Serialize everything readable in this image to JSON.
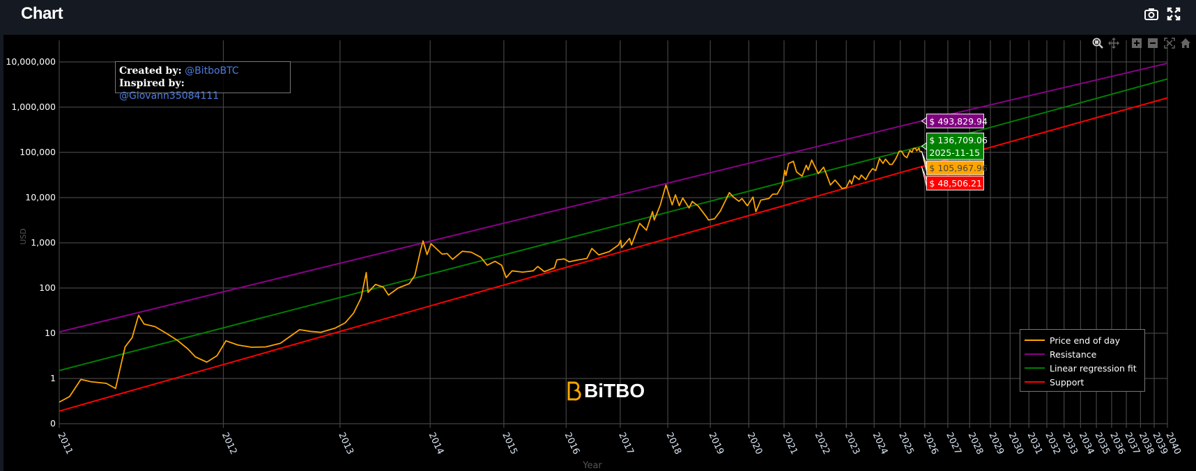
{
  "header": {
    "title": "Chart",
    "icons": [
      "camera-icon",
      "fullscreen-icon"
    ]
  },
  "modebar": {
    "icons": [
      "zoom-icon",
      "pan-icon",
      "zoom-in-icon",
      "zoom-out-icon",
      "autoscale-icon",
      "reset-axes-icon"
    ]
  },
  "annotation": {
    "created_label": "Created by:",
    "created_handle": "@BitboBTC",
    "inspired_label": "Inspired by:",
    "inspired_handle": "@Giovann35084111"
  },
  "watermark": {
    "text": "BiTBO"
  },
  "chart_data": {
    "type": "line",
    "xlabel": "Year",
    "ylabel": "USD",
    "xscale": "log",
    "yscale": "log",
    "grid": true,
    "legend_position": "bottom-right",
    "x_ticks": [
      "2011",
      "2012",
      "2013",
      "2014",
      "2015",
      "2016",
      "2017",
      "2018",
      "2019",
      "2020",
      "2021",
      "2022",
      "2023",
      "2024",
      "2025",
      "2026",
      "2027",
      "2028",
      "2029",
      "2030",
      "2031",
      "2032",
      "2033",
      "2034",
      "2035",
      "2036",
      "2037",
      "2038",
      "2039",
      "2040"
    ],
    "y_ticks": [
      {
        "value": 0.1,
        "label": "0"
      },
      {
        "value": 1,
        "label": "1"
      },
      {
        "value": 10,
        "label": "10"
      },
      {
        "value": 100,
        "label": "100"
      },
      {
        "value": 1000,
        "label": "1,000"
      },
      {
        "value": 10000,
        "label": "10,000"
      },
      {
        "value": 100000,
        "label": "100,000"
      },
      {
        "value": 1000000,
        "label": "1,000,000"
      },
      {
        "value": 10000000,
        "label": "10,000,000"
      }
    ],
    "series": [
      {
        "name": "Price end of day",
        "color": "#ffa500",
        "points": [
          [
            "2011-01-01",
            0.3
          ],
          [
            "2011-01-20",
            0.4
          ],
          [
            "2011-02-10",
            0.95
          ],
          [
            "2011-03-01",
            0.85
          ],
          [
            "2011-04-01",
            0.78
          ],
          [
            "2011-04-20",
            0.6
          ],
          [
            "2011-05-10",
            5
          ],
          [
            "2011-05-25",
            8
          ],
          [
            "2011-06-08",
            25
          ],
          [
            "2011-06-20",
            16
          ],
          [
            "2011-07-15",
            14
          ],
          [
            "2011-08-10",
            10
          ],
          [
            "2011-09-05",
            7
          ],
          [
            "2011-10-01",
            4.5
          ],
          [
            "2011-10-20",
            3
          ],
          [
            "2011-11-18",
            2.3
          ],
          [
            "2011-12-15",
            3.2
          ],
          [
            "2012-01-08",
            6.8
          ],
          [
            "2012-02-10",
            5.5
          ],
          [
            "2012-03-20",
            4.9
          ],
          [
            "2012-05-01",
            5
          ],
          [
            "2012-06-15",
            6
          ],
          [
            "2012-08-15",
            12
          ],
          [
            "2012-09-20",
            11
          ],
          [
            "2012-10-25",
            10.5
          ],
          [
            "2012-12-15",
            13
          ],
          [
            "2013-01-20",
            17
          ],
          [
            "2013-02-20",
            28
          ],
          [
            "2013-03-20",
            60
          ],
          [
            "2013-04-09",
            220
          ],
          [
            "2013-04-16",
            80
          ],
          [
            "2013-05-15",
            120
          ],
          [
            "2013-06-15",
            105
          ],
          [
            "2013-07-06",
            70
          ],
          [
            "2013-08-15",
            100
          ],
          [
            "2013-10-01",
            125
          ],
          [
            "2013-10-25",
            190
          ],
          [
            "2013-11-18",
            650
          ],
          [
            "2013-11-30",
            1100
          ],
          [
            "2013-12-18",
            550
          ],
          [
            "2014-01-05",
            950
          ],
          [
            "2014-02-25",
            560
          ],
          [
            "2014-03-20",
            580
          ],
          [
            "2014-04-15",
            430
          ],
          [
            "2014-06-01",
            650
          ],
          [
            "2014-07-15",
            620
          ],
          [
            "2014-09-01",
            480
          ],
          [
            "2014-10-05",
            320
          ],
          [
            "2014-11-15",
            390
          ],
          [
            "2014-12-20",
            320
          ],
          [
            "2015-01-14",
            170
          ],
          [
            "2015-02-15",
            240
          ],
          [
            "2015-04-15",
            225
          ],
          [
            "2015-06-15",
            240
          ],
          [
            "2015-07-12",
            300
          ],
          [
            "2015-08-20",
            230
          ],
          [
            "2015-10-20",
            280
          ],
          [
            "2015-11-04",
            420
          ],
          [
            "2015-12-20",
            440
          ],
          [
            "2016-01-20",
            380
          ],
          [
            "2016-03-15",
            415
          ],
          [
            "2016-05-15",
            450
          ],
          [
            "2016-06-17",
            750
          ],
          [
            "2016-08-03",
            540
          ],
          [
            "2016-10-15",
            640
          ],
          [
            "2016-12-20",
            900
          ],
          [
            "2017-01-04",
            1130
          ],
          [
            "2017-01-12",
            780
          ],
          [
            "2017-03-10",
            1250
          ],
          [
            "2017-03-25",
            900
          ],
          [
            "2017-05-25",
            2700
          ],
          [
            "2017-07-16",
            1900
          ],
          [
            "2017-09-01",
            4900
          ],
          [
            "2017-09-15",
            3200
          ],
          [
            "2017-11-01",
            6800
          ],
          [
            "2017-12-17",
            19000
          ],
          [
            "2018-02-06",
            6900
          ],
          [
            "2018-03-05",
            11500
          ],
          [
            "2018-04-06",
            6600
          ],
          [
            "2018-05-05",
            9800
          ],
          [
            "2018-06-28",
            5900
          ],
          [
            "2018-07-25",
            8200
          ],
          [
            "2018-09-15",
            6500
          ],
          [
            "2018-11-25",
            3800
          ],
          [
            "2018-12-15",
            3200
          ],
          [
            "2019-02-08",
            3400
          ],
          [
            "2019-04-02",
            5000
          ],
          [
            "2019-06-26",
            12900
          ],
          [
            "2019-08-01",
            10400
          ],
          [
            "2019-09-25",
            8300
          ],
          [
            "2019-10-26",
            9500
          ],
          [
            "2019-12-17",
            6600
          ],
          [
            "2020-02-12",
            10300
          ],
          [
            "2020-03-12",
            4900
          ],
          [
            "2020-05-01",
            8800
          ],
          [
            "2020-07-25",
            9600
          ],
          [
            "2020-09-01",
            11900
          ],
          [
            "2020-10-20",
            12000
          ],
          [
            "2020-12-15",
            19400
          ],
          [
            "2021-01-08",
            40000
          ],
          [
            "2021-01-22",
            31000
          ],
          [
            "2021-02-20",
            57000
          ],
          [
            "2021-04-13",
            63500
          ],
          [
            "2021-05-19",
            37000
          ],
          [
            "2021-07-20",
            29800
          ],
          [
            "2021-09-06",
            52000
          ],
          [
            "2021-09-28",
            41000
          ],
          [
            "2021-11-08",
            67500
          ],
          [
            "2021-12-15",
            48000
          ],
          [
            "2022-01-24",
            34000
          ],
          [
            "2022-03-28",
            47000
          ],
          [
            "2022-05-12",
            29000
          ],
          [
            "2022-06-18",
            19000
          ],
          [
            "2022-08-14",
            24400
          ],
          [
            "2022-09-30",
            19400
          ],
          [
            "2022-11-09",
            15900
          ],
          [
            "2022-12-30",
            16500
          ],
          [
            "2023-02-15",
            24300
          ],
          [
            "2023-03-10",
            20000
          ],
          [
            "2023-04-14",
            30500
          ],
          [
            "2023-06-15",
            25000
          ],
          [
            "2023-07-13",
            31400
          ],
          [
            "2023-09-11",
            25000
          ],
          [
            "2023-10-25",
            34500
          ],
          [
            "2023-12-10",
            43700
          ],
          [
            "2024-01-23",
            39500
          ],
          [
            "2024-03-14",
            73000
          ],
          [
            "2024-05-01",
            57000
          ],
          [
            "2024-06-05",
            71000
          ],
          [
            "2024-08-05",
            54000
          ],
          [
            "2024-09-06",
            53900
          ],
          [
            "2024-10-29",
            72500
          ],
          [
            "2024-12-17",
            106000
          ],
          [
            "2025-01-21",
            106000
          ],
          [
            "2025-02-28",
            84000
          ],
          [
            "2025-04-08",
            76000
          ],
          [
            "2025-05-22",
            111000
          ],
          [
            "2025-06-22",
            100000
          ],
          [
            "2025-07-14",
            122000
          ],
          [
            "2025-08-14",
            123000
          ],
          [
            "2025-09-01",
            108000
          ],
          [
            "2025-10-06",
            124500
          ],
          [
            "2025-10-17",
            106000
          ],
          [
            "2025-11-04",
            103000
          ],
          [
            "2025-11-15",
            105967.96
          ]
        ]
      },
      {
        "name": "Resistance",
        "color": "#8b008b",
        "points": [
          [
            "2011-01-01",
            10.7
          ],
          [
            "2025-11-15",
            493829.94
          ],
          [
            "2040-01-01",
            9300000
          ]
        ]
      },
      {
        "name": "Linear regression fit",
        "color": "#008000",
        "points": [
          [
            "2011-01-01",
            1.5
          ],
          [
            "2025-11-15",
            136709.06
          ],
          [
            "2040-01-01",
            4200000
          ]
        ]
      },
      {
        "name": "Support",
        "color": "#ff0000",
        "points": [
          [
            "2011-01-01",
            0.19
          ],
          [
            "2025-11-15",
            48506.21
          ],
          [
            "2040-01-01",
            1600000
          ]
        ]
      }
    ],
    "hover": {
      "date": "2025-11-15",
      "labels": [
        {
          "series": "Resistance",
          "text": "$ 493,829.94",
          "bg": "#800080",
          "fg": "#ffffff"
        },
        {
          "series": "Linear regression fit",
          "text": "$ 136,709.06",
          "text2": "2025-11-15",
          "bg": "#008000",
          "fg": "#ffffff"
        },
        {
          "series": "Price end of day",
          "text": "$ 105,967.96",
          "bg": "#ffa500",
          "fg": "#444444"
        },
        {
          "series": "Support",
          "text": "$ 48,506.21",
          "bg": "#ff0000",
          "fg": "#ffffff"
        }
      ]
    }
  }
}
